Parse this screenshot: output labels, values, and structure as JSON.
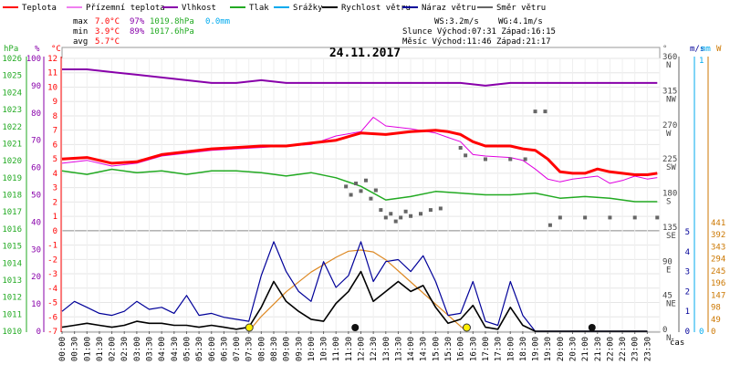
{
  "chart_data": {
    "type": "line",
    "title": "24.11.2017",
    "legend": [
      {
        "name": "Teplota",
        "color": "#ff0000"
      },
      {
        "name": "Přízemní teplota",
        "color": "#e000e0"
      },
      {
        "name": "Vlhkost",
        "color": "#8800aa"
      },
      {
        "name": "Tlak",
        "color": "#22aa22"
      },
      {
        "name": "Srážky",
        "color": "#00aaee"
      },
      {
        "name": "Rychlost větru",
        "color": "#000000"
      },
      {
        "name": "Náraz větru",
        "color": "#000099"
      },
      {
        "name": "Směr větru",
        "color": "#666666"
      }
    ],
    "stats": {
      "max": {
        "label": "max",
        "temp": "7.0°C",
        "hum": "97%",
        "press": "1019.8hPa",
        "rain": "0.0mm"
      },
      "min": {
        "label": "min",
        "temp": "3.9°C",
        "hum": "89%",
        "press": "1017.6hPa"
      },
      "avg": {
        "label": "avg",
        "temp": "5.7°C"
      }
    },
    "info": {
      "ws": "WS:3.2m/s",
      "wg": "WG:4.1m/s",
      "sun": "Slunce Východ:07:31  Západ:16:15",
      "moon": "Měsíc  Východ:11:46  Západ:21:17"
    },
    "axis_units": {
      "hpa": "hPa",
      "pct": "%",
      "degc": "°C",
      "deg": "°",
      "ms": "m/s",
      "mm": "mm",
      "w": "W",
      "time": "čas"
    },
    "hpa_ticks": [
      1026,
      1025,
      1024,
      1023,
      1022,
      1021,
      1020,
      1019,
      1018,
      1017,
      1016,
      1015,
      1014,
      1013,
      1012,
      1011,
      1010
    ],
    "pct_ticks": [
      100,
      90,
      80,
      70,
      60,
      50,
      40,
      30,
      20,
      10,
      0
    ],
    "temp_ticks": [
      12,
      11,
      10,
      9,
      8,
      7,
      6,
      5,
      4,
      3,
      2,
      1,
      0,
      -1,
      -2,
      -3,
      -4,
      -5,
      -6,
      -7
    ],
    "dir_ticks": [
      {
        "deg": 360,
        "label": "N"
      },
      {
        "deg": 315,
        "label": "NW"
      },
      {
        "deg": 270,
        "label": "W"
      },
      {
        "deg": 225,
        "label": "SW"
      },
      {
        "deg": 180,
        "label": "S"
      },
      {
        "deg": 135,
        "label": "SE"
      },
      {
        "deg": 90,
        "label": "E"
      },
      {
        "deg": 45,
        "label": "NE"
      },
      {
        "deg": 0,
        "label": "N"
      }
    ],
    "wind_ticks": [
      5,
      4,
      3,
      2,
      1,
      0
    ],
    "rain_ticks": [
      1,
      0
    ],
    "solar_ticks": [
      441,
      392,
      343,
      294,
      245,
      196,
      147,
      98,
      49,
      0
    ],
    "time_labels": [
      "00:00",
      "00:30",
      "01:00",
      "01:30",
      "02:00",
      "02:30",
      "03:00",
      "03:30",
      "04:00",
      "04:30",
      "05:00",
      "05:30",
      "06:00",
      "06:30",
      "07:00",
      "07:30",
      "08:00",
      "08:30",
      "09:00",
      "09:30",
      "10:00",
      "10:30",
      "11:00",
      "11:30",
      "12:00",
      "12:30",
      "13:00",
      "13:30",
      "14:00",
      "14:30",
      "15:00",
      "15:30",
      "16:00",
      "16:30",
      "17:00",
      "17:30",
      "18:00",
      "18:30",
      "19:00",
      "19:30",
      "20:00",
      "20:30",
      "21:00",
      "21:30",
      "22:00",
      "22:30",
      "23:00",
      "23:30"
    ],
    "series": {
      "temperature": {
        "name": "Teplota",
        "unit": "°C",
        "x": [
          0,
          1,
          2,
          3,
          4,
          5,
          6,
          7,
          8,
          9,
          10,
          11,
          12,
          13,
          14,
          15,
          15.5,
          16,
          16.5,
          17,
          18,
          18.5,
          19,
          19.5,
          20,
          20.5,
          21,
          21.5,
          22,
          22.5,
          23,
          23.5,
          23.9
        ],
        "y": [
          5.0,
          5.1,
          4.7,
          4.8,
          5.3,
          5.5,
          5.7,
          5.8,
          5.9,
          5.9,
          6.1,
          6.3,
          6.8,
          6.7,
          6.9,
          7.0,
          6.9,
          6.7,
          6.2,
          5.9,
          5.9,
          5.7,
          5.6,
          5.0,
          4.1,
          4.0,
          4.0,
          4.3,
          4.1,
          4.0,
          3.9,
          3.9,
          4.0
        ]
      },
      "ground_temperature": {
        "name": "Přízemní teplota",
        "unit": "°C",
        "x": [
          0,
          1,
          2,
          3,
          4,
          5,
          6,
          7,
          8,
          9,
          10,
          11,
          12,
          12.5,
          13,
          14,
          15,
          15.5,
          16,
          16.5,
          17,
          18,
          18.5,
          19,
          19.5,
          20,
          20.5,
          21,
          21.5,
          22,
          22.5,
          23,
          23.5,
          23.9
        ],
        "y": [
          4.7,
          4.9,
          4.5,
          4.7,
          5.2,
          5.4,
          5.6,
          5.7,
          5.8,
          5.9,
          6.0,
          6.6,
          6.9,
          7.9,
          7.3,
          7.1,
          6.8,
          6.5,
          6.2,
          5.3,
          5.2,
          5.1,
          4.9,
          4.3,
          3.6,
          3.4,
          3.6,
          3.7,
          3.8,
          3.3,
          3.5,
          3.8,
          3.6,
          3.7
        ]
      },
      "humidity": {
        "name": "Vlhkost",
        "unit": "%",
        "x": [
          0,
          1,
          2,
          3,
          4,
          5,
          6,
          7,
          8,
          9,
          10,
          11,
          12,
          13,
          14,
          15,
          16,
          17,
          18,
          19,
          20,
          21,
          22,
          23,
          23.9
        ],
        "y": [
          96,
          96,
          95,
          94,
          93,
          92,
          91,
          91,
          92,
          91,
          91,
          91,
          91,
          91,
          91,
          91,
          91,
          90,
          91,
          91,
          91,
          91,
          91,
          91,
          91
        ]
      },
      "pressure": {
        "name": "Tlak",
        "unit": "hPa",
        "x": [
          0,
          1,
          2,
          3,
          4,
          5,
          6,
          7,
          8,
          9,
          10,
          11,
          12,
          13,
          14,
          15,
          16,
          17,
          18,
          19,
          20,
          21,
          22,
          23,
          23.9
        ],
        "y": [
          1019.4,
          1019.2,
          1019.5,
          1019.3,
          1019.4,
          1019.2,
          1019.4,
          1019.4,
          1019.3,
          1019.1,
          1019.3,
          1019.0,
          1018.5,
          1017.7,
          1017.9,
          1018.2,
          1018.1,
          1018.0,
          1018.0,
          1018.1,
          1017.8,
          1017.9,
          1017.8,
          1017.6,
          1017.6
        ]
      },
      "wind_speed": {
        "name": "Rychlost větru",
        "unit": "m/s",
        "x": [
          0,
          0.5,
          1,
          1.5,
          2,
          2.5,
          3,
          3.5,
          4,
          4.5,
          5,
          5.5,
          6,
          6.5,
          7,
          7.5,
          8,
          8.5,
          9,
          9.5,
          10,
          10.5,
          11,
          11.5,
          12,
          12.5,
          13,
          13.5,
          14,
          14.5,
          15,
          15.5,
          16,
          16.5,
          17,
          17.5,
          18,
          18.5,
          19,
          19.5,
          20,
          20.5,
          21,
          21.5,
          22,
          22.5,
          23,
          23.5
        ],
        "y": [
          0.2,
          0.3,
          0.4,
          0.3,
          0.2,
          0.3,
          0.5,
          0.4,
          0.4,
          0.3,
          0.3,
          0.2,
          0.3,
          0.2,
          0.1,
          0.2,
          1.2,
          2.5,
          1.5,
          1.0,
          0.6,
          0.5,
          1.4,
          2.0,
          3.0,
          1.5,
          2.0,
          2.5,
          2.0,
          2.3,
          1.2,
          0.4,
          0.6,
          1.3,
          0.2,
          0.1,
          1.2,
          0.3,
          0.0,
          0.0,
          0.0,
          0.0,
          0.0,
          0.0,
          0.0,
          0.0,
          0.0,
          0.0
        ]
      },
      "wind_gust": {
        "name": "Náraz větru",
        "unit": "m/s",
        "x": [
          0,
          0.5,
          1,
          1.5,
          2,
          2.5,
          3,
          3.5,
          4,
          4.5,
          5,
          5.5,
          6,
          6.5,
          7,
          7.5,
          8,
          8.5,
          9,
          9.5,
          10,
          10.5,
          11,
          11.5,
          12,
          12.5,
          13,
          13.5,
          14,
          14.5,
          15,
          15.5,
          16,
          16.5,
          17,
          17.5,
          18,
          18.5,
          19,
          19.5,
          20,
          20.5,
          21,
          21.5,
          22,
          22.5,
          23,
          23.5
        ],
        "y": [
          1.0,
          1.5,
          1.2,
          0.9,
          0.8,
          1.0,
          1.5,
          1.1,
          1.2,
          0.9,
          1.8,
          0.8,
          0.9,
          0.7,
          0.6,
          0.5,
          2.8,
          4.5,
          3.0,
          2.0,
          1.5,
          3.5,
          2.2,
          2.8,
          4.5,
          2.5,
          3.5,
          3.6,
          3.0,
          3.8,
          2.5,
          0.8,
          0.9,
          2.5,
          0.5,
          0.3,
          2.5,
          0.8,
          0.0,
          0.0,
          0.0,
          0.0,
          0.0,
          0.0,
          0.0,
          0.0,
          0.0,
          0.0
        ]
      },
      "wind_direction": {
        "name": "Směr větru",
        "unit": "°",
        "points": [
          [
            11.4,
            191
          ],
          [
            11.6,
            180
          ],
          [
            11.8,
            195
          ],
          [
            12.0,
            185
          ],
          [
            12.2,
            199
          ],
          [
            12.4,
            175
          ],
          [
            12.6,
            186
          ],
          [
            12.8,
            160
          ],
          [
            13.0,
            150
          ],
          [
            13.2,
            155
          ],
          [
            13.4,
            145
          ],
          [
            13.6,
            150
          ],
          [
            13.8,
            158
          ],
          [
            14.0,
            152
          ],
          [
            14.4,
            155
          ],
          [
            14.8,
            160
          ],
          [
            15.2,
            162
          ],
          [
            16.0,
            242
          ],
          [
            16.2,
            232
          ],
          [
            17.0,
            227
          ],
          [
            18.0,
            227
          ],
          [
            18.6,
            227
          ],
          [
            19.0,
            290
          ],
          [
            19.4,
            290
          ],
          [
            19.6,
            140
          ],
          [
            20.0,
            150
          ],
          [
            21.0,
            150
          ],
          [
            22.0,
            150
          ],
          [
            23.0,
            150
          ],
          [
            23.9,
            150
          ]
        ]
      },
      "solar": {
        "name": "Slunce",
        "unit": "W",
        "x": [
          7.5,
          8,
          9,
          10,
          11,
          11.5,
          12,
          12.5,
          13,
          14,
          15,
          16,
          16.25
        ],
        "y": [
          0,
          60,
          160,
          240,
          300,
          325,
          330,
          322,
          290,
          200,
          110,
          20,
          0
        ]
      }
    },
    "sun_markers": [
      7.52,
      16.25
    ],
    "moon_markers": [
      11.77,
      21.28
    ]
  }
}
